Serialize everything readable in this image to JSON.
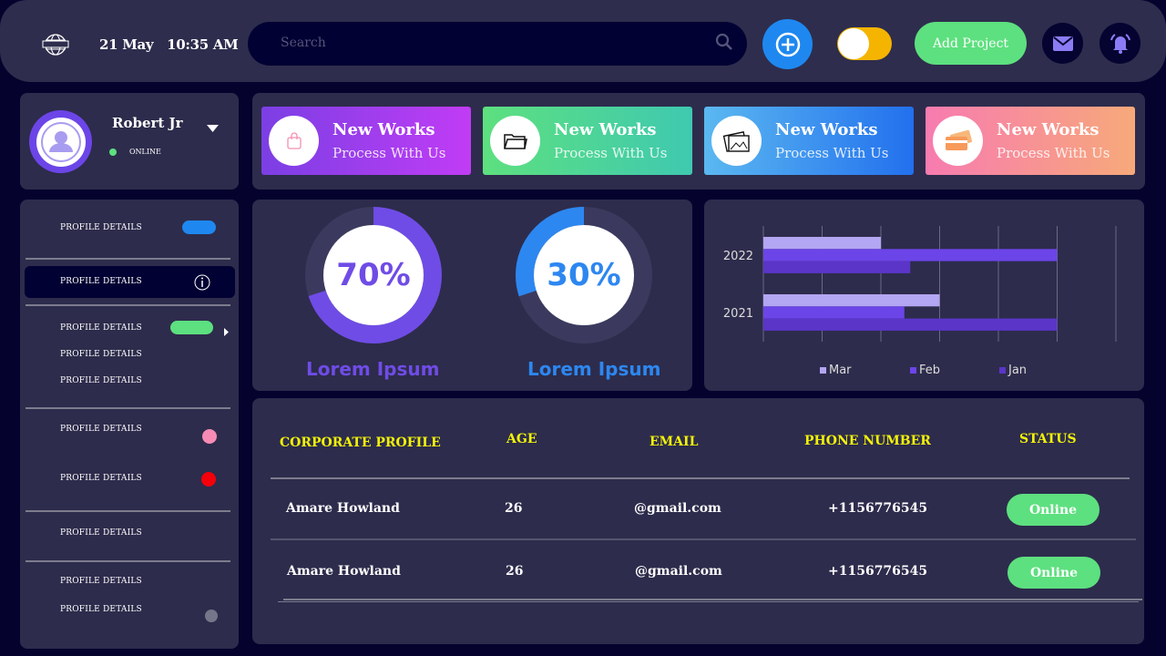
{
  "header": {
    "date": "21 May",
    "time": "10:35 AM",
    "search_placeholder": "Search",
    "add_project_label": "Add Project"
  },
  "colors": {
    "background": "#05032e",
    "panel": "#2d2c4c",
    "green": "#5de07f",
    "blue": "#1e88f0",
    "yellow": "#f5b400",
    "purple": "#6c45e8"
  },
  "profile": {
    "name": "Robert Jr",
    "status": "ONLINE"
  },
  "sidebar": {
    "items": [
      {
        "label": "PROFILE DETAILS"
      },
      {
        "label": "PROFILE DETAILS"
      },
      {
        "label": "PROFILE DETAILS"
      },
      {
        "label": "PROFILE DETAILS"
      },
      {
        "label": "PROFILE DETAILS"
      },
      {
        "label": "PROFILE DETAILS"
      },
      {
        "label": "PROFILE DETAILS"
      },
      {
        "label": "PROFILE DETAILS"
      },
      {
        "label": "PROFILE DETAILS"
      },
      {
        "label": "PROFILE DETAILS"
      }
    ]
  },
  "cards": [
    {
      "title": "New Works",
      "subtitle": "Process With Us",
      "icon": "shopping-bag-icon"
    },
    {
      "title": "New Works",
      "subtitle": "Process With Us",
      "icon": "folder-icon"
    },
    {
      "title": "New Works",
      "subtitle": "Process With Us",
      "icon": "images-icon"
    },
    {
      "title": "New Works",
      "subtitle": "Process With Us",
      "icon": "credit-card-icon"
    }
  ],
  "donuts": [
    {
      "value": 70,
      "label_text": "70%",
      "caption": "Lorem Ipsum",
      "color": "#6f4ce6"
    },
    {
      "value": 30,
      "label_text": "30%",
      "caption": "Lorem Ipsum",
      "color": "#2d87f0"
    }
  ],
  "chart_data": {
    "type": "bar",
    "orientation": "horizontal",
    "categories": [
      "2022",
      "2021"
    ],
    "series": [
      {
        "name": "Mar",
        "values": [
          2,
          3
        ],
        "color": "#b3a6f2"
      },
      {
        "name": "Feb",
        "values": [
          5,
          2.4
        ],
        "color": "#6c45e8"
      },
      {
        "name": "Jan",
        "values": [
          2.5,
          5
        ],
        "color": "#5a35c8"
      }
    ],
    "xlim": [
      0,
      6
    ],
    "grid": true,
    "legend": "bottom"
  },
  "table": {
    "headers": [
      "CORPORATE PROFILE",
      "AGE",
      "EMAIL",
      "PHONE NUMBER",
      "STATUS"
    ],
    "rows": [
      {
        "name": "Amare Howland",
        "age": "26",
        "email": "@gmail.com",
        "phone": "+1156776545",
        "status": "Online"
      },
      {
        "name": "Amare Howland",
        "age": "26",
        "email": "@gmail.com",
        "phone": "+1156776545",
        "status": "Online"
      }
    ]
  }
}
